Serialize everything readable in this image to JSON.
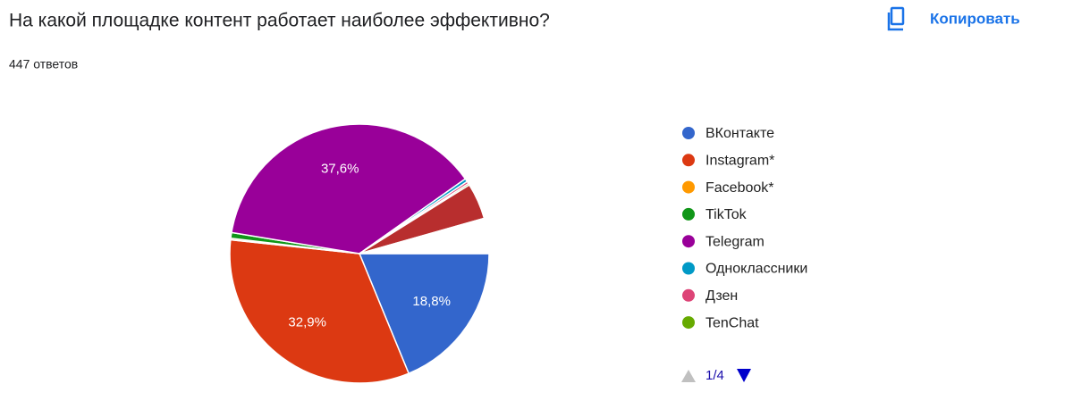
{
  "copy_button": "Копировать",
  "chart_data": {
    "type": "pie",
    "title": "На какой площадке контент работает наиболее эффективно?",
    "subtitle": "447 ответов",
    "categories": [
      "ВКонтакте",
      "Instagram*",
      "Facebook*",
      "TikTok",
      "Telegram",
      "Одноклассники",
      "Дзен",
      "TenChat",
      null,
      null
    ],
    "values": [
      18.8,
      32.9,
      0.2,
      0.7,
      37.6,
      0.4,
      0.3,
      0.2,
      4.5,
      4.4
    ],
    "value_labels": [
      "18,8%",
      "32,9%",
      null,
      null,
      "37,6%",
      null,
      null,
      null,
      null,
      null
    ],
    "colors": [
      "#3366cc",
      "#dc3912",
      "#ff9900",
      "#109618",
      "#990099",
      "#0099c6",
      "#dd4477",
      "#66aa00",
      "#b82e2e",
      "#ffffff"
    ],
    "legend_page": "1/4"
  }
}
